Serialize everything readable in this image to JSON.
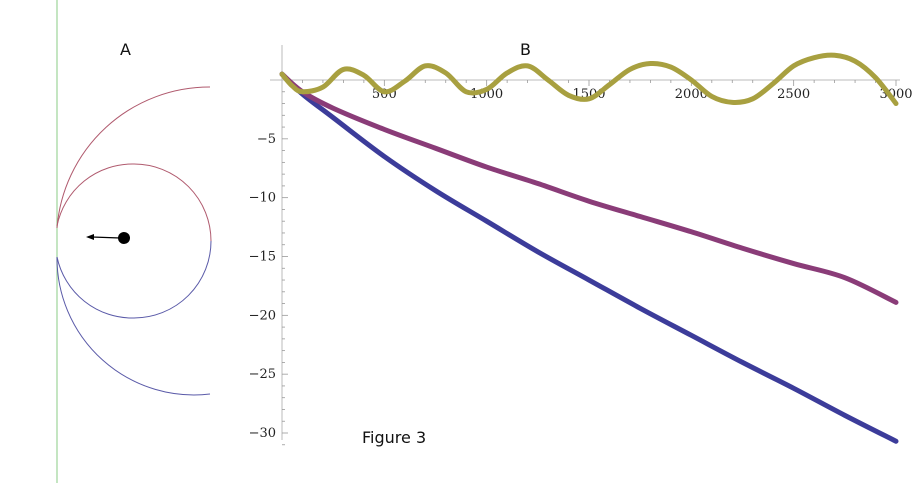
{
  "figure": {
    "caption": "Figure 3",
    "panel_a_label": "A",
    "panel_b_label": "B"
  },
  "chart_data": [
    {
      "type": "diagram",
      "panel": "A",
      "elements": [
        "outer arc (red to blue)",
        "inner circle (red to blue)",
        "vertical green line",
        "black dot with arrow pointing left"
      ],
      "colors": {
        "red_end": "#b05a6e",
        "blue_end": "#5a5aa8",
        "line": "#9ed49a",
        "dot": "#000000"
      }
    },
    {
      "type": "line",
      "panel": "B",
      "x_ticks": [
        500,
        1000,
        1500,
        2000,
        2500,
        3000
      ],
      "y_ticks": [
        -5,
        -10,
        -15,
        -20,
        -25,
        -30
      ],
      "xlim": [
        0,
        3000
      ],
      "ylim": [
        -31,
        2
      ],
      "series": [
        {
          "color": "#3c3c9a",
          "x": [
            0,
            100,
            250,
            500,
            750,
            1000,
            1250,
            1500,
            1750,
            2000,
            2250,
            2500,
            2750,
            3000
          ],
          "y": [
            0.5,
            -1.2,
            -3.2,
            -6.5,
            -9.4,
            -12.0,
            -14.6,
            -17.0,
            -19.4,
            -21.7,
            -24.0,
            -26.2,
            -28.5,
            -30.7
          ]
        },
        {
          "color": "#8a3c78",
          "x": [
            0,
            100,
            250,
            500,
            750,
            1000,
            1250,
            1500,
            1750,
            2000,
            2250,
            2500,
            2750,
            3000
          ],
          "y": [
            0.5,
            -1.0,
            -2.4,
            -4.2,
            -5.8,
            -7.4,
            -8.8,
            -10.3,
            -11.6,
            -12.9,
            -14.3,
            -15.6,
            -16.8,
            -18.9
          ]
        },
        {
          "color": "#a8a040",
          "x": [
            0,
            50,
            100,
            200,
            300,
            400,
            500,
            600,
            700,
            800,
            900,
            1000,
            1100,
            1200,
            1300,
            1400,
            1500,
            1600,
            1700,
            1800,
            1900,
            2000,
            2100,
            2200,
            2300,
            2400,
            2500,
            2600,
            2700,
            2800,
            2900,
            3000
          ],
          "y": [
            0.5,
            -0.5,
            -1.0,
            -0.6,
            0.9,
            0.4,
            -1.0,
            -0.1,
            1.2,
            0.6,
            -1.0,
            -0.8,
            0.6,
            1.2,
            0.0,
            -1.3,
            -1.6,
            -0.4,
            0.9,
            1.4,
            1.1,
            0.0,
            -1.4,
            -1.9,
            -1.6,
            -0.3,
            1.2,
            1.9,
            2.1,
            1.6,
            0.2,
            -2.0
          ]
        }
      ]
    }
  ]
}
